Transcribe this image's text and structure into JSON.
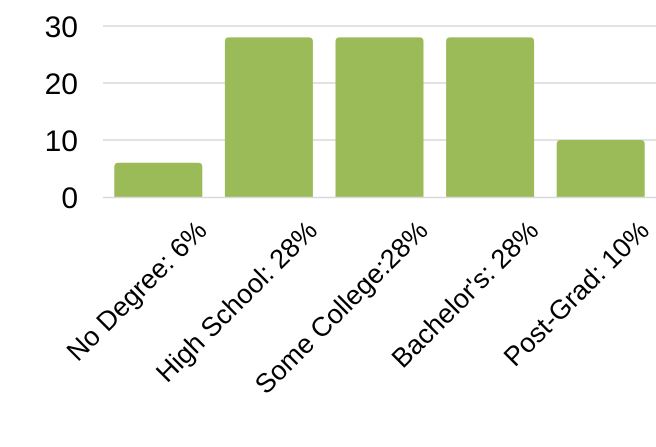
{
  "chart_data": {
    "type": "bar",
    "title": "",
    "xlabel": "",
    "ylabel": "",
    "categories": [
      "No Degree: 6%",
      "High School: 28%",
      "Some College:28%",
      "Bachelor's: 28%",
      "Post-Grad: 10%"
    ],
    "values": [
      6,
      28,
      28,
      28,
      10
    ],
    "ylim": [
      0,
      30
    ],
    "yticks": [
      "0",
      "10",
      "20",
      "30"
    ],
    "grid": true,
    "legend": "none",
    "colors": {
      "bar": "#9BBB59",
      "grid": "#D9D9D9",
      "axis": "#D9D9D9",
      "text": "#000000"
    }
  }
}
